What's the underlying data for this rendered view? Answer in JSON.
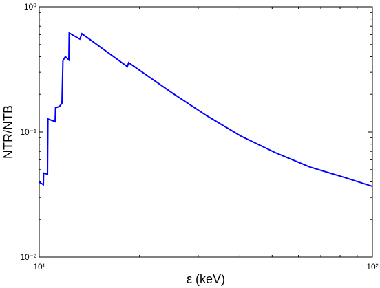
{
  "chart_data": {
    "type": "line",
    "xlabel": "ε (keV)",
    "ylabel": "NTR/NTB",
    "xscale": "log",
    "yscale": "log",
    "xlim": [
      10,
      100
    ],
    "ylim": [
      0.01,
      1
    ],
    "xticks": [
      {
        "value": 10,
        "label": "10¹"
      },
      {
        "value": 100,
        "label": "10²"
      }
    ],
    "yticks": [
      {
        "value": 0.01,
        "label": "10⁻²"
      },
      {
        "value": 0.1,
        "label": "10⁻¹"
      },
      {
        "value": 1,
        "label": "10⁰"
      }
    ],
    "xminorticks": [
      20,
      30,
      40,
      50,
      60,
      70,
      80,
      90
    ],
    "yminorticks": [
      0.02,
      0.03,
      0.04,
      0.05,
      0.06,
      0.07,
      0.08,
      0.09,
      0.2,
      0.3,
      0.4,
      0.5,
      0.6,
      0.7,
      0.8,
      0.9
    ],
    "series": [
      {
        "color": "#0000ff",
        "x": [
          10,
          10.29,
          10.31,
          10.59,
          10.62,
          11.16,
          11.19,
          11.5,
          11.7,
          11.78,
          11.98,
          12.27,
          12.3,
          13.24,
          13.43,
          18.38,
          18.55,
          25.0,
          31.8,
          40.3,
          51.1,
          64.9,
          82.3,
          100
        ],
        "values": [
          0.0397,
          0.038,
          0.047,
          0.046,
          0.127,
          0.121,
          0.156,
          0.16,
          0.17,
          0.372,
          0.4,
          0.377,
          0.618,
          0.552,
          0.61,
          0.333,
          0.358,
          0.206,
          0.135,
          0.0927,
          0.0684,
          0.0525,
          0.0434,
          0.0368
        ]
      }
    ]
  }
}
